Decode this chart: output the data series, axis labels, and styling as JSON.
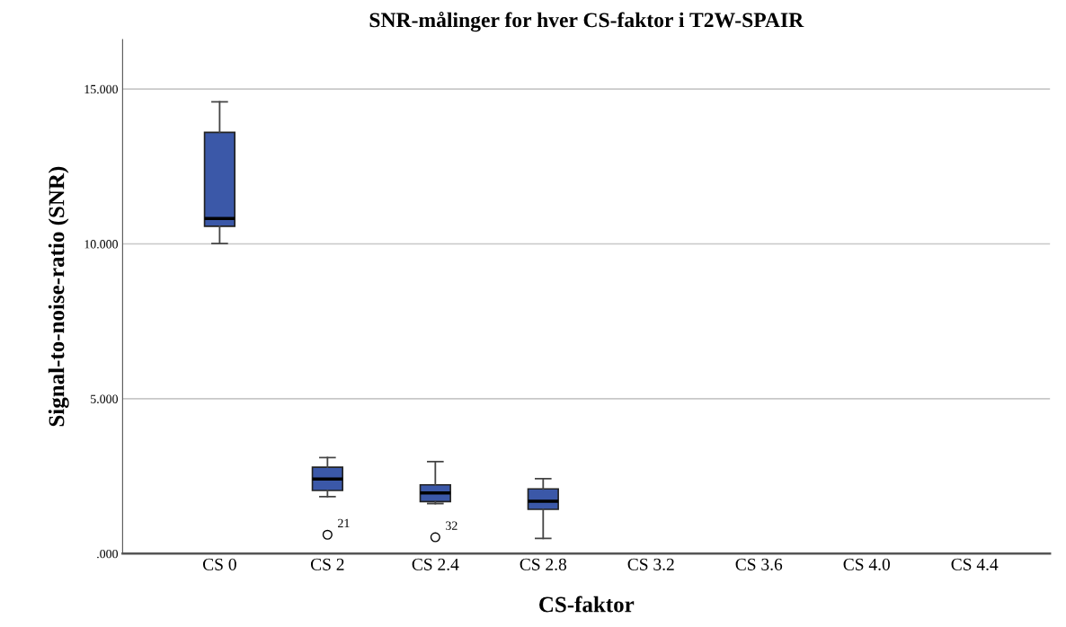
{
  "chart_data": {
    "type": "box",
    "title": "SNR-målinger for hver CS-faktor i T2W-SPAIR",
    "xlabel": "CS-faktor",
    "ylabel": "Signal-to-noise-ratio (SNR)",
    "categories": [
      "CS 0",
      "CS 2",
      "CS 2.4",
      "CS 2.8",
      "CS 3.2",
      "CS 3.6",
      "CS 4.0",
      "CS 4.4"
    ],
    "series": [
      {
        "color": "#3b58a8",
        "boxes": [
          {
            "low": 10.01,
            "q1": 10.57,
            "median": 10.82,
            "q3": 13.6,
            "high": 14.59
          },
          {
            "low": 1.84,
            "q1": 2.04,
            "median": 2.41,
            "q3": 2.79,
            "high": 3.1,
            "outliers": [
              0.61
            ]
          },
          {
            "low": 1.62,
            "q1": 1.68,
            "median": 1.96,
            "q3": 2.22,
            "high": 2.97,
            "outliers": [
              0.53
            ]
          },
          {
            "low": 0.49,
            "q1": 1.43,
            "median": 1.69,
            "q3": 2.09,
            "high": 2.42
          },
          null,
          null,
          null,
          null
        ]
      }
    ],
    "annotations": [
      "21",
      "32"
    ],
    "ylim": [
      0,
      16.6
    ],
    "yticks": [
      {
        "value": 0,
        "label": ".000"
      },
      {
        "value": 5,
        "label": "5.000"
      },
      {
        "value": 10,
        "label": "10.000"
      },
      {
        "value": 15,
        "label": "15.000"
      }
    ],
    "grid": "y",
    "legend": false
  }
}
